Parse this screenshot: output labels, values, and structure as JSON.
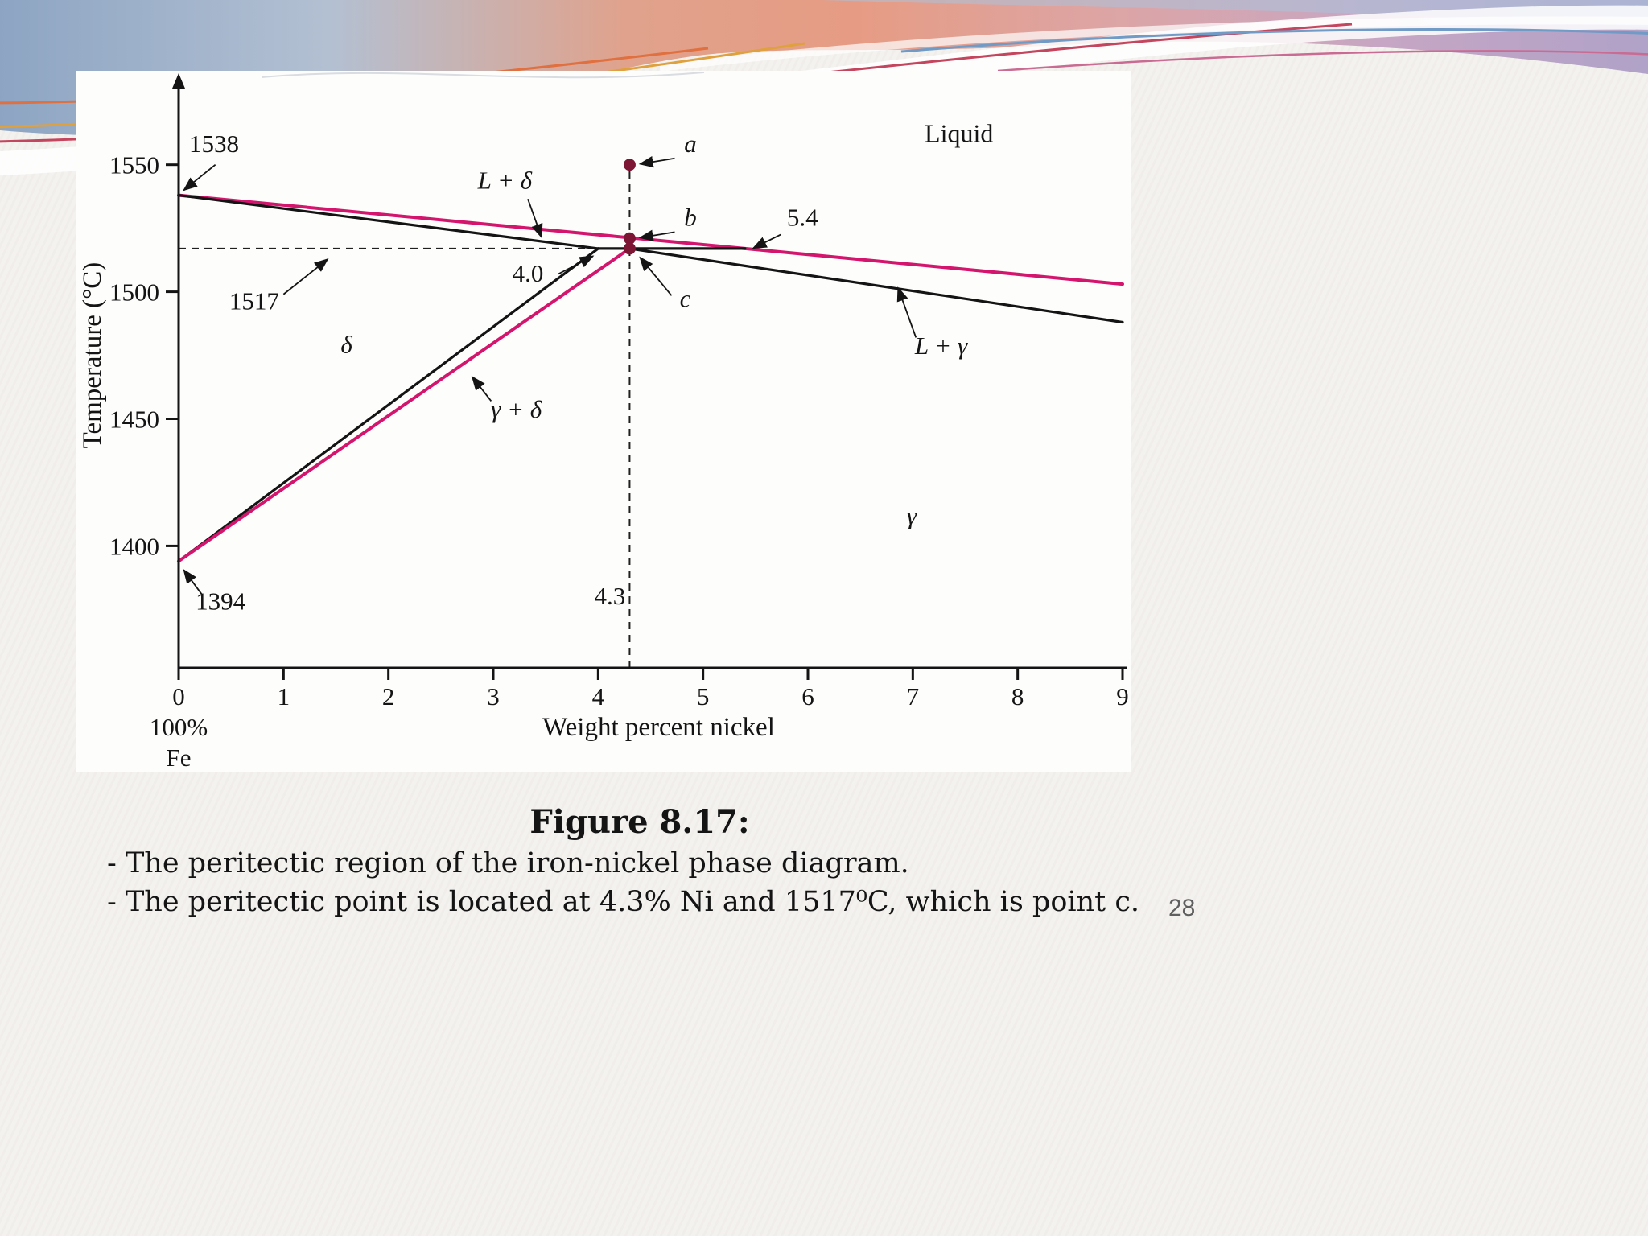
{
  "slide": {
    "page_number": "28",
    "caption_title": "Figure 8.17:",
    "caption_lines": [
      "- The peritectic region of the iron-nickel phase diagram.",
      "- The peritectic point is located at 4.3% Ni and 1517⁰C, which is point c."
    ]
  },
  "chart_data": {
    "type": "line",
    "title": "",
    "xlabel": "Weight percent nickel",
    "ylabel": "Temperature (°C)",
    "x_origin_labels": [
      "100%",
      "Fe"
    ],
    "xlim": [
      0,
      9
    ],
    "ylim": [
      1352,
      1586
    ],
    "x_ticks": [
      "0",
      "1",
      "2",
      "3",
      "4",
      "5",
      "6",
      "7",
      "8",
      "9"
    ],
    "y_ticks": [
      "1400",
      "1450",
      "1500",
      "1550"
    ],
    "grid": false,
    "colors": {
      "boundary_black": "#141414",
      "boundary_pink": "#d4156e",
      "point_fill": "#7d1535",
      "dashed": "#202020"
    },
    "series": [
      {
        "name": "liquidus",
        "color": "#d4156e",
        "width": 4,
        "points": [
          [
            0,
            1538
          ],
          [
            5.4,
            1517
          ],
          [
            9,
            1503
          ]
        ]
      },
      {
        "name": "delta-solidus",
        "color": "#141414",
        "width": 3.2,
        "points": [
          [
            0,
            1538
          ],
          [
            4.0,
            1517
          ]
        ]
      },
      {
        "name": "peritectic-isotherm",
        "color": "#141414",
        "width": 3.2,
        "points": [
          [
            4.0,
            1517
          ],
          [
            5.4,
            1517
          ]
        ]
      },
      {
        "name": "delta-plus-gamma-left-boundary",
        "color": "#141414",
        "width": 3.2,
        "points": [
          [
            0,
            1394
          ],
          [
            4.0,
            1517
          ]
        ]
      },
      {
        "name": "gamma-left-boundary",
        "color": "#d4156e",
        "width": 4,
        "points": [
          [
            0,
            1394
          ],
          [
            4.3,
            1517
          ]
        ]
      },
      {
        "name": "gamma-solidus",
        "color": "#141414",
        "width": 3.2,
        "points": [
          [
            4.3,
            1517
          ],
          [
            9,
            1488
          ]
        ]
      }
    ],
    "guides": [
      {
        "name": "isotherm-1517",
        "from": [
          0,
          1517
        ],
        "to": [
          4.05,
          1517
        ]
      },
      {
        "name": "composition-4-3",
        "from": [
          4.3,
          1352
        ],
        "to": [
          4.3,
          1550
        ]
      }
    ],
    "points": [
      {
        "name": "a",
        "x": 4.3,
        "y": 1550
      },
      {
        "name": "b",
        "x": 4.3,
        "y": 1521
      },
      {
        "name": "c",
        "x": 4.3,
        "y": 1517
      }
    ],
    "labels": [
      {
        "id": "1538",
        "text": "1538",
        "x": 0.1,
        "y": 1555,
        "anchor": "start",
        "italic": false,
        "arrow": {
          "from": [
            0.35,
            1550
          ],
          "to": [
            0.05,
            1540
          ]
        }
      },
      {
        "id": "1517",
        "text": "1517",
        "x": 0.72,
        "y": 1493,
        "anchor": "middle",
        "italic": false,
        "arrow": {
          "from": [
            1.0,
            1499
          ],
          "to": [
            1.42,
            1512.8
          ]
        }
      },
      {
        "id": "4-0",
        "text": "4.0",
        "x": 3.33,
        "y": 1504,
        "anchor": "middle",
        "italic": false,
        "arrow": {
          "from": [
            3.62,
            1507
          ],
          "to": [
            3.95,
            1514
          ]
        }
      },
      {
        "id": "5-4",
        "text": "5.4",
        "x": 5.8,
        "y": 1526,
        "anchor": "start",
        "italic": false,
        "arrow": {
          "from": [
            5.74,
            1522.5
          ],
          "to": [
            5.48,
            1517.2
          ]
        }
      },
      {
        "id": "1394",
        "text": "1394",
        "x": 0.4,
        "y": 1375,
        "anchor": "middle",
        "italic": false,
        "arrow": {
          "from": [
            0.22,
            1381
          ],
          "to": [
            0.05,
            1390.5
          ]
        }
      },
      {
        "id": "4-3",
        "text": "4.3",
        "x": 4.26,
        "y": 1377,
        "anchor": "end",
        "italic": false
      },
      {
        "id": "point-a",
        "text": "a",
        "x": 4.88,
        "y": 1555,
        "anchor": "middle",
        "italic": true,
        "arrow": {
          "from": [
            4.73,
            1552.5
          ],
          "to": [
            4.4,
            1550.3
          ]
        }
      },
      {
        "id": "point-b",
        "text": "b",
        "x": 4.88,
        "y": 1526,
        "anchor": "middle",
        "italic": true,
        "arrow": {
          "from": [
            4.73,
            1523.5
          ],
          "to": [
            4.4,
            1521.3
          ]
        }
      },
      {
        "id": "point-c",
        "text": "c",
        "x": 4.83,
        "y": 1494,
        "anchor": "middle",
        "italic": true,
        "arrow": {
          "from": [
            4.7,
            1498.5
          ],
          "to": [
            4.4,
            1513.5
          ]
        }
      },
      {
        "id": "region-l-delta",
        "text": "L + δ",
        "x": 3.11,
        "y": 1540.5,
        "anchor": "middle",
        "italic": true,
        "arrow": {
          "from": [
            3.33,
            1536.5
          ],
          "to": [
            3.46,
            1521.5
          ]
        }
      },
      {
        "id": "region-l-gamma",
        "text": "L + γ",
        "x": 7.27,
        "y": 1475.5,
        "anchor": "middle",
        "italic": true,
        "arrow": {
          "from": [
            7.03,
            1482
          ],
          "to": [
            6.86,
            1501.5
          ]
        }
      },
      {
        "id": "region-gamma-delta",
        "text": "γ + δ",
        "x": 3.22,
        "y": 1450.5,
        "anchor": "middle",
        "italic": true,
        "arrow": {
          "from": [
            2.98,
            1457
          ],
          "to": [
            2.8,
            1466.5
          ]
        }
      },
      {
        "id": "region-liquid",
        "text": "Liquid",
        "x": 7.44,
        "y": 1559,
        "anchor": "middle",
        "italic": false,
        "size": 32
      },
      {
        "id": "region-delta",
        "text": "δ",
        "x": 1.6,
        "y": 1476,
        "anchor": "middle",
        "italic": true
      },
      {
        "id": "region-gamma",
        "text": "γ",
        "x": 6.99,
        "y": 1408.5,
        "anchor": "middle",
        "italic": true
      }
    ]
  }
}
